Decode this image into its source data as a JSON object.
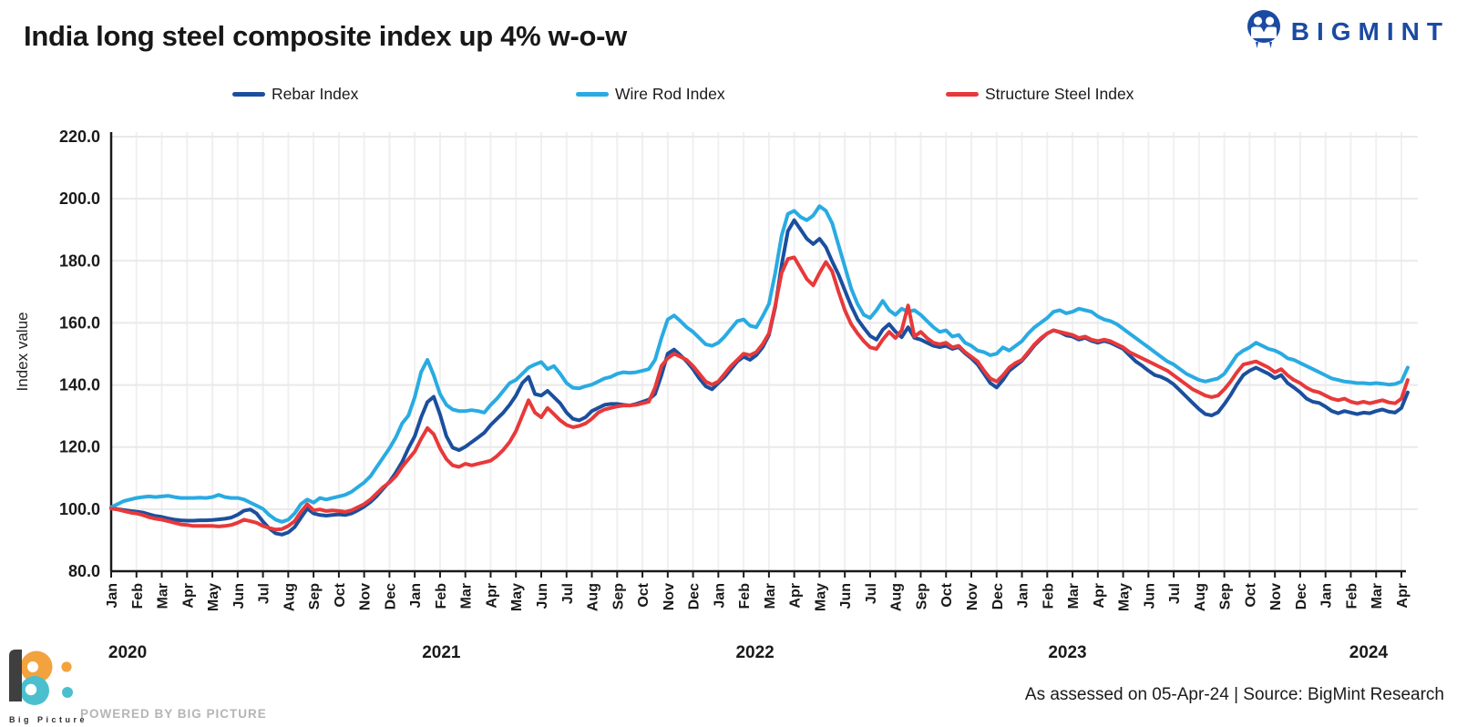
{
  "header": {
    "logo_text": "BIGMINT"
  },
  "chart_data": {
    "type": "line",
    "title": "India long steel composite index up 4% w-o-w",
    "xlabel": "",
    "ylabel": "Index value",
    "ylim": [
      80,
      220
    ],
    "ytick_interval": 20,
    "ytick_labels": [
      "80.0",
      "100.0",
      "120.0",
      "140.0",
      "160.0",
      "180.0",
      "200.0",
      "220.0"
    ],
    "x_unit": "weekly observations, Jan 2020 - Apr 2024",
    "grid": "on",
    "legend_position": "top",
    "x_tick_labels": [
      "Jan",
      "Feb",
      "Mar",
      "Apr",
      "May",
      "Jun",
      "Jul",
      "Aug",
      "Sep",
      "Oct",
      "Nov",
      "Dec",
      "Jan",
      "Feb",
      "Mar",
      "Apr",
      "May",
      "Jun",
      "Jul",
      "Aug",
      "Sep",
      "Oct",
      "Nov",
      "Dec",
      "Jan",
      "Feb",
      "Mar",
      "Apr",
      "May",
      "Jun",
      "Jul",
      "Aug",
      "Sep",
      "Oct",
      "Nov",
      "Dec",
      "Jan",
      "Feb",
      "Mar",
      "Apr",
      "May",
      "Jun",
      "Jul",
      "Aug",
      "Sep",
      "Oct",
      "Nov",
      "Dec",
      "Jan",
      "Feb",
      "Mar",
      "Apr"
    ],
    "year_labels": [
      "2020",
      "2021",
      "2022",
      "2023",
      "2024"
    ],
    "points_per_month": 4,
    "series": [
      {
        "name": "Rebar Index",
        "color": "#1B4F9E",
        "values": [
          100.5,
          100.0,
          99.7,
          99.4,
          99.2,
          98.9,
          98.3,
          97.8,
          97.5,
          97.0,
          96.6,
          96.4,
          96.3,
          96.3,
          96.4,
          96.4,
          96.5,
          96.7,
          96.9,
          97.3,
          98.2,
          99.5,
          99.9,
          98.6,
          96.0,
          93.8,
          92.2,
          91.8,
          92.5,
          94.2,
          97.2,
          100.2,
          98.6,
          98.1,
          97.9,
          98.1,
          98.3,
          98.1,
          98.6,
          99.6,
          100.8,
          102.3,
          104.2,
          106.6,
          108.8,
          111.8,
          115.2,
          119.6,
          123.5,
          129.5,
          134.5,
          136.2,
          130.5,
          123.5,
          119.8,
          119.0,
          120.1,
          121.6,
          123.1,
          124.6,
          127.1,
          129.1,
          131.1,
          133.6,
          136.6,
          140.6,
          142.6,
          137.1,
          136.6,
          138.1,
          136.1,
          134.1,
          131.1,
          129.1,
          128.6,
          129.6,
          131.6,
          132.6,
          133.6,
          133.9,
          133.9,
          133.6,
          133.4,
          133.9,
          134.6,
          135.3,
          137.1,
          143.1,
          150.1,
          151.4,
          149.6,
          147.6,
          145.1,
          142.1,
          139.6,
          138.6,
          140.6,
          142.6,
          145.1,
          147.6,
          149.1,
          148.1,
          149.6,
          152.1,
          156.1,
          165.1,
          178.6,
          189.6,
          193.1,
          190.1,
          187.1,
          185.4,
          187.1,
          184.4,
          179.8,
          175.6,
          170.5,
          165.5,
          161.2,
          158.4,
          155.8,
          154.6,
          157.8,
          159.6,
          157.2,
          155.4,
          158.6,
          155.2,
          154.6,
          153.6,
          152.6,
          152.2,
          152.6,
          151.6,
          152.2,
          150.2,
          148.6,
          146.6,
          143.6,
          140.6,
          139.2,
          141.6,
          144.6,
          146.2,
          147.8,
          150.2,
          152.8,
          154.8,
          156.6,
          157.6,
          157.0,
          156.0,
          155.6,
          154.6,
          155.2,
          154.2,
          153.6,
          154.2,
          153.6,
          152.6,
          151.6,
          149.6,
          147.6,
          146.2,
          144.6,
          143.2,
          142.6,
          141.6,
          140.2,
          138.2,
          136.2,
          134.2,
          132.2,
          130.6,
          130.2,
          131.2,
          133.8,
          136.8,
          140.2,
          143.2,
          144.6,
          145.6,
          144.6,
          143.6,
          142.2,
          143.2,
          140.6,
          139.2,
          137.6,
          135.6,
          134.6,
          134.2,
          133.0,
          131.6,
          130.9,
          131.6,
          131.1,
          130.6,
          131.1,
          130.9,
          131.6,
          132.1,
          131.4,
          131.1,
          132.6,
          137.6
        ]
      },
      {
        "name": "Wire Rod Index",
        "color": "#29ABE2",
        "values": [
          100.6,
          101.6,
          102.6,
          103.1,
          103.6,
          103.9,
          104.1,
          103.9,
          104.1,
          104.3,
          103.9,
          103.6,
          103.6,
          103.6,
          103.7,
          103.6,
          103.9,
          104.6,
          103.9,
          103.6,
          103.6,
          103.1,
          102.1,
          101.1,
          100.1,
          98.1,
          96.6,
          95.9,
          96.6,
          98.6,
          101.6,
          103.1,
          102.1,
          103.6,
          103.1,
          103.6,
          104.1,
          104.6,
          105.6,
          107.1,
          108.6,
          110.6,
          113.6,
          116.6,
          119.6,
          123.1,
          127.6,
          130.1,
          136.1,
          144.1,
          148.1,
          143.1,
          137.1,
          133.6,
          132.1,
          131.6,
          131.6,
          131.9,
          131.6,
          131.1,
          133.6,
          135.6,
          138.1,
          140.6,
          141.6,
          143.6,
          145.6,
          146.6,
          147.4,
          145.1,
          146.1,
          143.6,
          140.6,
          139.1,
          138.9,
          139.6,
          140.1,
          141.1,
          142.1,
          142.6,
          143.6,
          144.1,
          143.9,
          144.1,
          144.6,
          145.1,
          148.1,
          155.1,
          161.1,
          162.4,
          160.6,
          158.6,
          157.1,
          155.1,
          153.1,
          152.6,
          153.6,
          155.6,
          158.1,
          160.6,
          161.1,
          159.1,
          158.6,
          162.1,
          166.1,
          176.1,
          188.1,
          195.1,
          196.1,
          194.1,
          193.1,
          194.6,
          197.6,
          196.1,
          192.1,
          185.1,
          178.1,
          171.1,
          166.1,
          162.6,
          161.6,
          164.1,
          167.1,
          164.1,
          162.6,
          164.6,
          163.6,
          164.1,
          162.6,
          160.6,
          158.6,
          157.1,
          157.6,
          155.6,
          156.1,
          153.6,
          152.6,
          151.1,
          150.6,
          149.6,
          150.1,
          152.1,
          151.1,
          152.6,
          154.1,
          156.6,
          158.6,
          160.1,
          161.6,
          163.6,
          164.1,
          163.1,
          163.6,
          164.6,
          164.1,
          163.6,
          162.1,
          161.1,
          160.6,
          159.6,
          158.1,
          156.6,
          155.1,
          153.6,
          152.1,
          150.6,
          149.1,
          147.6,
          146.6,
          145.1,
          143.6,
          142.6,
          141.6,
          141.1,
          141.6,
          142.1,
          143.6,
          146.6,
          149.6,
          151.1,
          152.1,
          153.6,
          152.6,
          151.6,
          151.1,
          150.1,
          148.6,
          148.1,
          147.1,
          146.1,
          145.1,
          144.1,
          143.1,
          142.1,
          141.6,
          141.1,
          140.9,
          140.6,
          140.6,
          140.4,
          140.6,
          140.4,
          140.1,
          140.3,
          141.1,
          145.6
        ]
      },
      {
        "name": "Structure Steel Index",
        "color": "#E8393A",
        "values": [
          100.2,
          99.9,
          99.4,
          98.9,
          98.6,
          98.1,
          97.4,
          96.9,
          96.6,
          96.1,
          95.6,
          95.1,
          94.9,
          94.6,
          94.6,
          94.6,
          94.6,
          94.4,
          94.6,
          94.9,
          95.6,
          96.6,
          96.1,
          95.6,
          94.6,
          93.9,
          93.4,
          93.6,
          94.6,
          96.1,
          99.1,
          101.6,
          99.6,
          99.9,
          99.4,
          99.6,
          99.4,
          99.1,
          99.6,
          100.6,
          101.6,
          103.1,
          105.1,
          107.1,
          108.6,
          110.6,
          113.6,
          116.1,
          118.6,
          122.6,
          126.1,
          124.1,
          119.6,
          116.1,
          114.1,
          113.6,
          114.6,
          114.1,
          114.6,
          115.1,
          115.6,
          117.1,
          119.1,
          121.6,
          125.1,
          130.1,
          135.1,
          131.1,
          129.6,
          132.6,
          130.6,
          128.6,
          127.1,
          126.4,
          126.8,
          127.6,
          129.1,
          131.1,
          132.1,
          132.6,
          133.1,
          133.4,
          133.4,
          133.6,
          134.1,
          134.6,
          139.1,
          146.1,
          148.6,
          150.1,
          149.1,
          148.1,
          146.1,
          143.6,
          141.1,
          140.1,
          141.1,
          143.6,
          146.1,
          148.1,
          150.1,
          149.6,
          150.6,
          153.1,
          156.6,
          165.6,
          176.1,
          180.6,
          181.1,
          177.6,
          174.1,
          172.1,
          176.1,
          179.6,
          176.6,
          170.1,
          164.1,
          159.6,
          156.6,
          154.1,
          152.1,
          151.6,
          154.6,
          157.1,
          155.1,
          157.6,
          165.6,
          155.6,
          157.1,
          155.1,
          153.6,
          153.1,
          153.6,
          152.1,
          152.6,
          150.6,
          149.1,
          147.6,
          144.6,
          142.1,
          141.1,
          143.1,
          145.6,
          147.1,
          148.1,
          150.6,
          153.1,
          155.1,
          156.6,
          157.6,
          157.1,
          156.6,
          156.1,
          155.1,
          155.6,
          154.6,
          154.1,
          154.6,
          154.1,
          153.1,
          152.1,
          150.6,
          149.6,
          148.6,
          147.6,
          146.6,
          145.6,
          144.6,
          143.1,
          141.6,
          140.1,
          138.6,
          137.6,
          136.6,
          136.1,
          136.6,
          138.6,
          141.1,
          144.1,
          146.6,
          147.1,
          147.6,
          146.6,
          145.6,
          144.1,
          145.1,
          143.1,
          141.6,
          140.6,
          139.1,
          138.1,
          137.6,
          136.6,
          135.6,
          135.1,
          135.6,
          134.6,
          134.1,
          134.6,
          134.1,
          134.6,
          135.1,
          134.4,
          134.1,
          135.6,
          141.6
        ]
      }
    ]
  },
  "footer": {
    "assessed_text": "As assessed on 05-Apr-24  | Source: BigMint Research",
    "powered_by": "POWERED BY BIG PICTURE",
    "brand_name": "Big Picture"
  }
}
